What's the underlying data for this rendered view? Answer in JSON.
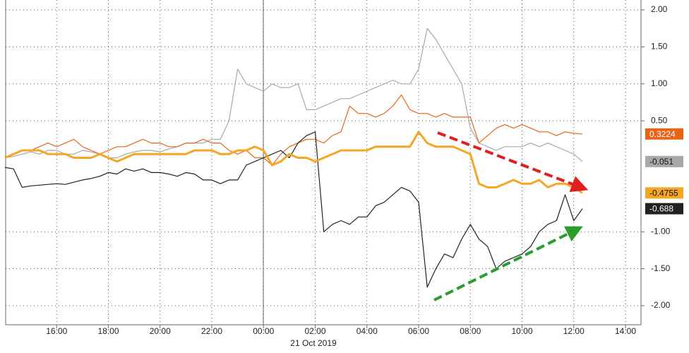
{
  "chart_data": {
    "type": "line",
    "date_label": "21 Oct 2019",
    "categories": [
      null,
      null,
      null,
      null,
      null,
      null,
      "16:00",
      null,
      null,
      null,
      null,
      null,
      "18:00",
      null,
      null,
      null,
      null,
      null,
      "20:00",
      null,
      null,
      null,
      null,
      null,
      "22:00",
      null,
      null,
      null,
      null,
      null,
      "00:00",
      null,
      null,
      null,
      null,
      null,
      "02:00",
      null,
      null,
      null,
      null,
      null,
      "04:00",
      null,
      null,
      null,
      null,
      null,
      "06:00",
      null,
      null,
      null,
      null,
      null,
      "08:00",
      null,
      null,
      null,
      null,
      null,
      "10:00",
      null,
      null,
      null,
      null,
      null,
      "12:00",
      null,
      null,
      null,
      null,
      null,
      "14:00"
    ],
    "series": [
      {
        "color": "#a8a8a8",
        "values": [
          0,
          0.02,
          0.05,
          0.08,
          0.05,
          0.1,
          0.1,
          0.05,
          0.05,
          0.1,
          0.08,
          0.05,
          0.0,
          0.0,
          0.05,
          0.08,
          0.1,
          0.1,
          0.08,
          0.12,
          0.15,
          0.2,
          0.2,
          0.2,
          0.25,
          0.25,
          0.5,
          1.2,
          1.0,
          0.95,
          0.9,
          1.0,
          0.95,
          0.95,
          1.0,
          0.65,
          0.65,
          0.7,
          0.75,
          0.8,
          0.8,
          0.85,
          0.9,
          0.95,
          1.0,
          1.05,
          1.0,
          1.0,
          1.2,
          1.75,
          1.6,
          1.4,
          1.2,
          1.0,
          0.4,
          0.2,
          0.15,
          0.1,
          0.15,
          0.15,
          0.15,
          0.2,
          0.15,
          0.2,
          0.15,
          0.1,
          0.05,
          -0.051,
          null,
          null,
          null,
          null,
          null
        ]
      },
      {
        "color": "#e8641b",
        "values": [
          0,
          0.05,
          0.1,
          0.1,
          0.15,
          0.2,
          0.15,
          0.2,
          0.25,
          0.15,
          0.1,
          0.05,
          0.1,
          0.15,
          0.15,
          0.2,
          0.25,
          0.2,
          0.2,
          0.15,
          0.15,
          0.2,
          0.2,
          0.25,
          0.2,
          0.2,
          0.1,
          0.05,
          0.1,
          0.0,
          0.0,
          -0.1,
          0.05,
          0.15,
          0.2,
          0.25,
          0.25,
          0.2,
          0.3,
          0.35,
          0.7,
          0.6,
          0.6,
          0.55,
          0.6,
          0.7,
          0.85,
          0.65,
          0.6,
          0.6,
          0.55,
          0.6,
          0.55,
          0.55,
          0.55,
          0.2,
          0.3,
          0.4,
          0.45,
          0.4,
          0.45,
          0.4,
          0.35,
          0.35,
          0.3,
          0.35,
          0.33,
          0.3224,
          null,
          null,
          null,
          null,
          null
        ]
      },
      {
        "color": "#222222",
        "values": [
          -0.13,
          -0.15,
          -0.4,
          -0.38,
          -0.37,
          -0.36,
          -0.35,
          -0.36,
          -0.33,
          -0.3,
          -0.28,
          -0.25,
          -0.2,
          -0.22,
          -0.15,
          -0.18,
          -0.15,
          -0.2,
          -0.2,
          -0.22,
          -0.25,
          -0.2,
          -0.22,
          -0.3,
          -0.3,
          -0.35,
          -0.3,
          -0.3,
          -0.1,
          -0.05,
          0.0,
          0.05,
          0.1,
          0.0,
          0.2,
          0.3,
          0.35,
          -1.0,
          -0.9,
          -0.85,
          -0.9,
          -0.8,
          -0.8,
          -0.65,
          -0.6,
          -0.5,
          -0.4,
          -0.45,
          -0.6,
          -1.75,
          -1.5,
          -1.3,
          -1.35,
          -1.1,
          -0.9,
          -1.1,
          -1.2,
          -1.5,
          -1.4,
          -1.35,
          -1.3,
          -1.2,
          -1.0,
          -0.9,
          -0.85,
          -0.5,
          -0.85,
          -0.688,
          null,
          null,
          null,
          null,
          null
        ]
      },
      {
        "color": "#f5a623",
        "emphasis": true,
        "values": [
          0,
          0.05,
          0.1,
          0.1,
          0.1,
          0.05,
          0.05,
          0.05,
          0.0,
          0.0,
          0.0,
          0.05,
          0.0,
          -0.05,
          0.0,
          0.05,
          0.05,
          0.05,
          0.05,
          0.05,
          0.05,
          0.05,
          0.1,
          0.1,
          0.1,
          0.05,
          0.05,
          0.1,
          0.1,
          0.15,
          0.1,
          -0.1,
          -0.05,
          0.05,
          0.0,
          0.0,
          -0.05,
          0.0,
          0.05,
          0.1,
          0.1,
          0.1,
          0.1,
          0.15,
          0.15,
          0.15,
          0.15,
          0.15,
          0.35,
          0.2,
          0.15,
          0.15,
          0.15,
          0.1,
          0.05,
          -0.35,
          -0.4,
          -0.4,
          -0.35,
          -0.3,
          -0.35,
          -0.35,
          -0.3,
          -0.4,
          -0.35,
          -0.35,
          -0.4,
          -0.4755,
          null,
          null,
          null,
          null,
          null
        ]
      }
    ],
    "ylim": [
      -2.2,
      2.2
    ],
    "yticks": [
      {
        "value": 2,
        "label": "2.00"
      },
      {
        "value": 1.5,
        "label": "1.50"
      },
      {
        "value": 1,
        "label": "1.00"
      },
      {
        "value": 0.5,
        "label": "0.50"
      },
      {
        "value": -1,
        "label": "-1.00"
      },
      {
        "value": -1.5,
        "label": "-1.50"
      },
      {
        "value": -2,
        "label": "-2.00"
      }
    ],
    "grid": true
  }
}
